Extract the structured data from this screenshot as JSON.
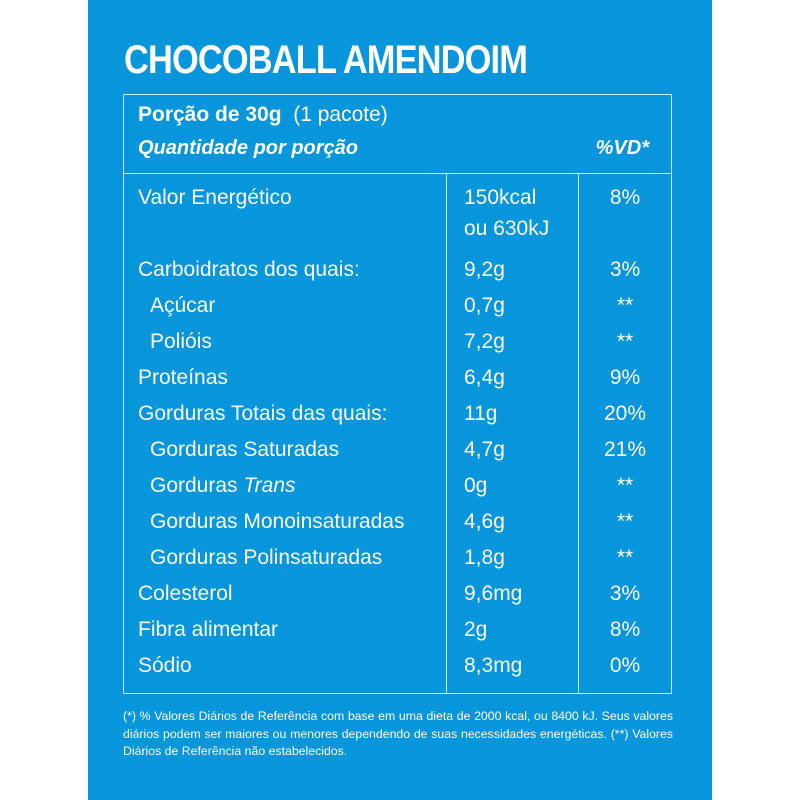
{
  "title": "CHOCOBALL AMENDOIM",
  "portion": {
    "bold": "Porção de 30g",
    "rest": "(1 pacote)"
  },
  "header": {
    "quantity": "Quantidade por porção",
    "vd": "%VD*"
  },
  "rows": [
    {
      "name": "Valor Energético",
      "amount": "150kcal",
      "amount2": "ou 630kJ",
      "vd": "8%"
    },
    {
      "name": "Carboidratos dos quais:",
      "amount": "9,2g",
      "vd": "3%"
    },
    {
      "name": "Açúcar",
      "amount": "0,7g",
      "vd": "**"
    },
    {
      "name": "Polióis",
      "amount": "7,2g",
      "vd": "**"
    },
    {
      "name": "Proteínas",
      "amount": "6,4g",
      "vd": "9%"
    },
    {
      "name": "Gorduras Totais das quais:",
      "amount": "11g",
      "vd": "20%"
    },
    {
      "name": "Gorduras Saturadas",
      "amount": "4,7g",
      "vd": "21%"
    },
    {
      "name": "Gorduras",
      "name_italic": "Trans",
      "amount": "0g",
      "vd": "**"
    },
    {
      "name": "Gorduras Monoinsaturadas",
      "amount": "4,6g",
      "vd": "**"
    },
    {
      "name": "Gorduras Polinsaturadas",
      "amount": "1,8g",
      "vd": "**"
    },
    {
      "name": "Colesterol",
      "amount": "9,6mg",
      "vd": "3%"
    },
    {
      "name": "Fibra alimentar",
      "amount": "2g",
      "vd": "8%"
    },
    {
      "name": "Sódio",
      "amount": "8,3mg",
      "vd": "0%"
    }
  ],
  "footnote": "(*) % Valores Diários de Referência com base em uma dieta de 2000 kcal, ou 8400 kJ. Seus valores diários podem ser maiores ou menores dependendo de suas necessidades energéticas. (**) Valores Diários de Referência não estabelecidos.",
  "colors": {
    "background": "#0796db",
    "text": "#ffffff"
  }
}
